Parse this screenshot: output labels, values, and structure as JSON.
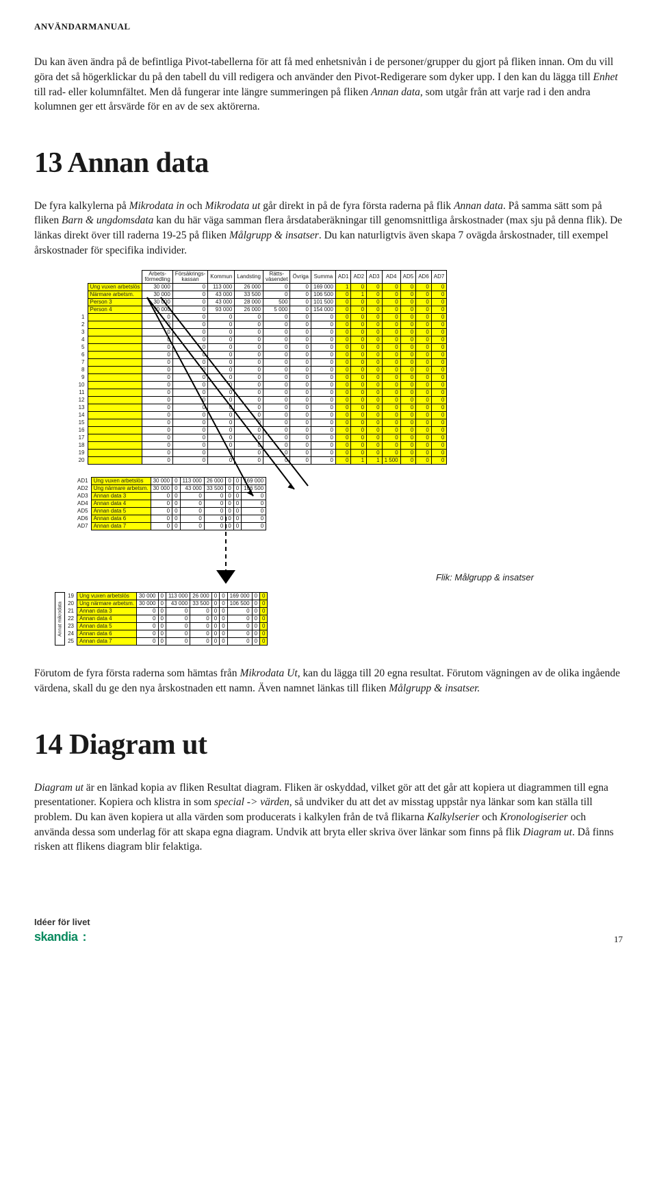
{
  "header": "ANVÄNDARMANUAL",
  "intro_p1_a": "Du kan även ändra på de befintliga Pivot-tabellerna för att få med enhetsnivån i de personer/grupper du gjort på fliken innan. Om du vill göra det så högerklickar du på den tabell du vill redigera och använder den Pivot-Redigerare som dyker upp. I den kan du lägga till ",
  "intro_p1_b": "Enhet",
  "intro_p1_c": " till rad- eller kolumnfältet. Men då fungerar inte längre summeringen på fliken ",
  "intro_p1_d": "Annan data",
  "intro_p1_e": ", som utgår från att varje rad i den andra kolumnen ger ett årsvärde för en av de sex aktörerna.",
  "h13": "13  Annan data",
  "p13_a": "De fyra kalkylerna på ",
  "p13_b": "Mikrodata in",
  "p13_c": " och ",
  "p13_d": "Mikrodata ut",
  "p13_e": " går direkt in på de fyra första raderna på flik ",
  "p13_f": "Annan data",
  "p13_g": ". På samma sätt som på fliken ",
  "p13_h": "Barn & ungdomsdata",
  "p13_i": " kan du här väga samman flera årsdataberäkningar till genomsnittliga årskostnader (max sju på denna flik). De länkas direkt över till raderna 19-25 på fliken ",
  "p13_j": "Målgrupp & insatser",
  "p13_k": ". Du kan naturligtvis även skapa 7 ovägda årskostnader, till exempel årskostnader för specifika individer.",
  "tbl1": {
    "headers": [
      "Arbets-\nförmedling",
      "Försäkrings-\nkassan",
      "Kommun",
      "Landsting",
      "Rätts-\nväsendet",
      "Övriga",
      "Summa",
      "AD1",
      "AD2",
      "AD3",
      "AD4",
      "AD5",
      "AD6",
      "AD7"
    ],
    "top_rows": [
      {
        "label": "Ung vuxen arbetslös",
        "vals": [
          "30 000",
          "0",
          "113 000",
          "26 000",
          "0",
          "0",
          "169 000"
        ],
        "ad": [
          "1",
          "0",
          "0",
          "0",
          "0",
          "0",
          "0"
        ],
        "yellow": true
      },
      {
        "label": "Närmare arbetsm.",
        "vals": [
          "30 000",
          "0",
          "43 000",
          "33 500",
          "0",
          "0",
          "106 500"
        ],
        "ad": [
          "0",
          "1",
          "0",
          "0",
          "0",
          "0",
          "0"
        ],
        "yellow": true
      },
      {
        "label": "Person 3",
        "vals": [
          "30 000",
          "0",
          "43 000",
          "28 000",
          "500",
          "0",
          "101 500"
        ],
        "ad": [
          "0",
          "0",
          "0",
          "0",
          "0",
          "0",
          "0"
        ],
        "yellow": true
      },
      {
        "label": "Person 4",
        "vals": [
          "30 000",
          "0",
          "93 000",
          "26 000",
          "5 000",
          "0",
          "154 000"
        ],
        "ad": [
          "0",
          "0",
          "0",
          "0",
          "0",
          "0",
          "0"
        ],
        "yellow": true
      }
    ],
    "num_rows": 20,
    "last_ad_row": [
      "0",
      "1",
      "1",
      "1 500",
      "0",
      "0",
      "0"
    ]
  },
  "tbl2": {
    "rows": [
      {
        "ad": "AD1",
        "label": "Ung vuxen arbetslös",
        "vals": [
          "30 000",
          "0",
          "113 000",
          "26 000",
          "0",
          "0",
          "169 000"
        ],
        "yellow": true
      },
      {
        "ad": "AD2",
        "label": "Ung närmare arbetsm.",
        "vals": [
          "30 000",
          "0",
          "43 000",
          "33 500",
          "0",
          "0",
          "106 500"
        ],
        "yellow": true
      },
      {
        "ad": "AD3",
        "label": "Annan data 3",
        "vals": [
          "0",
          "0",
          "0",
          "0",
          "0",
          "0",
          "0"
        ],
        "yellow": true
      },
      {
        "ad": "AD4",
        "label": "Annan data 4",
        "vals": [
          "0",
          "0",
          "0",
          "0",
          "0",
          "0",
          "0"
        ],
        "yellow": true
      },
      {
        "ad": "AD5",
        "label": "Annan data 5",
        "vals": [
          "0",
          "0",
          "0",
          "0",
          "0",
          "0",
          "0"
        ],
        "yellow": true
      },
      {
        "ad": "AD6",
        "label": "Annan data 6",
        "vals": [
          "0",
          "0",
          "0",
          "0",
          "0",
          "0",
          "0"
        ],
        "yellow": true
      },
      {
        "ad": "AD7",
        "label": "Annan data 7",
        "vals": [
          "0",
          "0",
          "0",
          "0",
          "0",
          "0",
          "0"
        ],
        "yellow": true
      }
    ]
  },
  "tbl3": {
    "sidelabel": "Annat mikrodata",
    "nums": [
      "19",
      "20",
      "21",
      "22",
      "23",
      "24",
      "25"
    ],
    "rows": [
      {
        "label": "Ung vuxen arbetslös",
        "vals": [
          "30 000",
          "0",
          "113 000",
          "26 000",
          "0",
          "0",
          "169 000",
          "0",
          "0"
        ]
      },
      {
        "label": "Ung närmare arbetsm.",
        "vals": [
          "30 000",
          "0",
          "43 000",
          "33 500",
          "0",
          "0",
          "106 500",
          "0",
          "0"
        ]
      },
      {
        "label": "Annan data 3",
        "vals": [
          "0",
          "0",
          "0",
          "0",
          "0",
          "0",
          "0",
          "0",
          "0"
        ]
      },
      {
        "label": "Annan data 4",
        "vals": [
          "0",
          "0",
          "0",
          "0",
          "0",
          "0",
          "0",
          "0",
          "0"
        ]
      },
      {
        "label": "Annan data 5",
        "vals": [
          "0",
          "0",
          "0",
          "0",
          "0",
          "0",
          "0",
          "0",
          "0"
        ]
      },
      {
        "label": "Annan data 6",
        "vals": [
          "0",
          "0",
          "0",
          "0",
          "0",
          "0",
          "0",
          "0",
          "0"
        ]
      },
      {
        "label": "Annan data 7",
        "vals": [
          "0",
          "0",
          "0",
          "0",
          "0",
          "0",
          "0",
          "0",
          "0"
        ]
      }
    ],
    "yellow_cols": [
      0,
      8
    ]
  },
  "fliklabel": "Flik: Målgrupp & insatser",
  "p_after_a": "Förutom de fyra första raderna som hämtas från ",
  "p_after_b": "Mikrodata Ut",
  "p_after_c": ", kan du lägga till 20 egna resultat. Förutom vägningen av de olika ingående värdena, skall du ge den nya årskostnaden ett namn. Även namnet länkas till fliken ",
  "p_after_d": "Målgrupp & insatser.",
  "h14": "14  Diagram ut",
  "p14_a": "Diagram ut",
  "p14_b": " är en länkad kopia av fliken Resultat diagram. Fliken är oskyddad, vilket gör att det går att kopiera ut diagrammen till egna presentationer. Kopiera och klistra in som ",
  "p14_c": "special -> värden",
  "p14_d": ", så undviker du att det av misstag uppstår nya länkar som kan ställa till problem.  Du kan även kopiera ut alla värden som producerats i kalkylen från de två flikarna ",
  "p14_e": "Kalkylserier",
  "p14_f": " och ",
  "p14_g": "Kronologiserier",
  "p14_h": " och använda dessa som underlag för att skapa egna diagram. Undvik att bryta eller skriva över länkar som finns på flik ",
  "p14_i": "Diagram ut",
  "p14_j": ". Då finns risken att flikens diagram blir felaktiga.",
  "logo_l1": "Idéer för livet",
  "logo_l2": "skandia",
  "pagenum": "17",
  "colors": {
    "yellow": "#ffff00",
    "green": "#0a8a5f",
    "text": "#1a1a1a"
  }
}
